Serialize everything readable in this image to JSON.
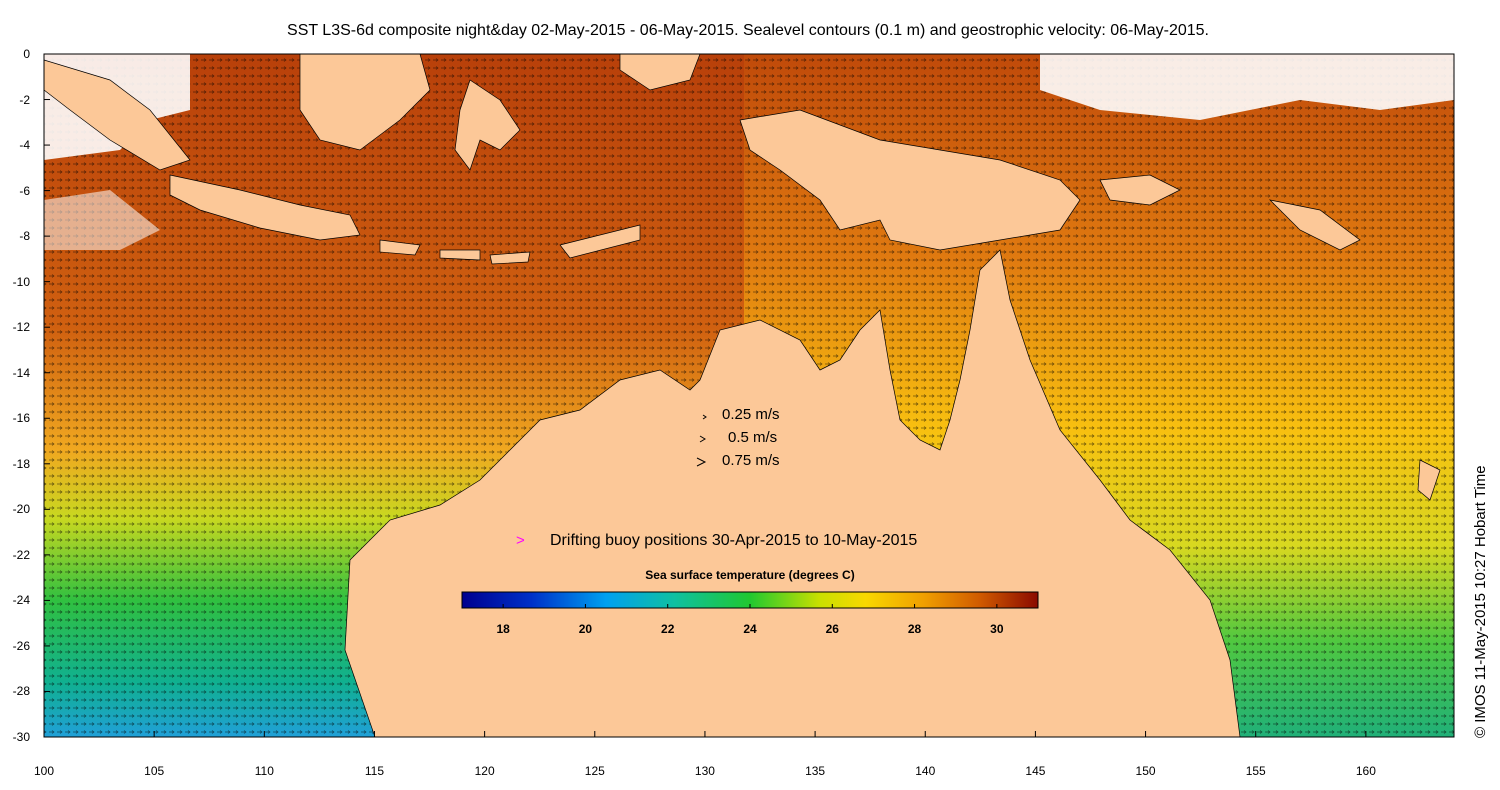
{
  "title": "SST L3S-6d composite night&day 02-May-2015 - 06-May-2015. Sealevel contours (0.1 m) and geostrophic velocity: 06-May-2015.",
  "map": {
    "lon_range": [
      100,
      164
    ],
    "lat_range": [
      -30,
      0
    ],
    "x_ticks": [
      "100",
      "105",
      "110",
      "115",
      "120",
      "125",
      "130",
      "135",
      "140",
      "145",
      "150",
      "155",
      "160"
    ],
    "y_ticks": [
      "0",
      "-2",
      "-4",
      "-6",
      "-8",
      "-10",
      "-12",
      "-14",
      "-16",
      "-18",
      "-20",
      "-22",
      "-24",
      "-26",
      "-28",
      "-30"
    ],
    "land_color": "#fcc898"
  },
  "velocity_legend": {
    "items": [
      {
        "label": "0.25 m/s"
      },
      {
        "label": "0.5 m/s"
      },
      {
        "label": "0.75 m/s"
      }
    ]
  },
  "buoy_legend": {
    "marker": ">",
    "label": "Drifting buoy positions 30-Apr-2015 to 10-May-2015",
    "color": "#ff00ff"
  },
  "colorbar": {
    "title": "Sea surface temperature (degrees C)",
    "range": [
      17,
      31
    ],
    "ticks": [
      "18",
      "20",
      "22",
      "24",
      "26",
      "28",
      "30"
    ]
  },
  "credit": "© IMOS 11-May-2015 10:27 Hobart Time"
}
